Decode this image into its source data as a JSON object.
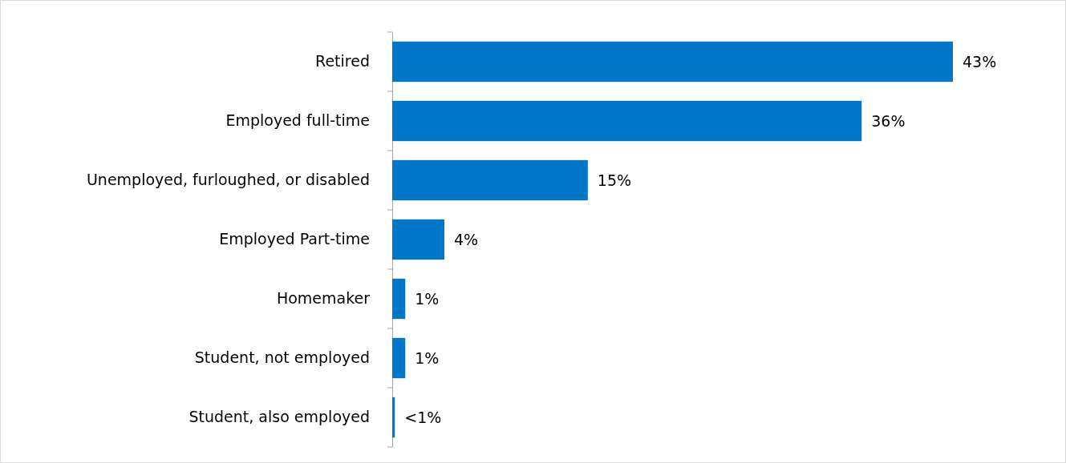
{
  "chart_data": {
    "type": "bar",
    "orientation": "horizontal",
    "categories": [
      "Retired",
      "Employed full-time",
      "Unemployed, furloughed, or disabled",
      "Employed Part-time",
      "Homemaker",
      "Student, not employed",
      "Student, also employed"
    ],
    "values": [
      43,
      36,
      15,
      4,
      1,
      1,
      0.2
    ],
    "value_labels": [
      "43%",
      "36%",
      "15%",
      "4%",
      "1%",
      "1%",
      "<1%"
    ],
    "color": "#0077c8"
  }
}
